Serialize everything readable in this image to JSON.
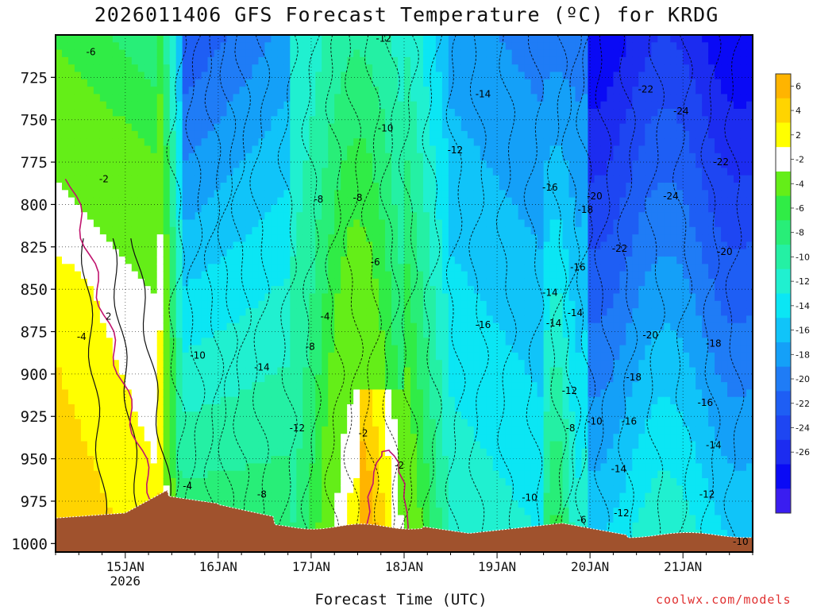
{
  "header": {
    "title": "2026011406 GFS Forecast Temperature (ºC) for KRDG"
  },
  "footer": {
    "xlabel": "Forecast Time (UTC)",
    "credit": "coolwx.com/models"
  },
  "chart_data": {
    "type": "heatmap",
    "title": "2026011406 GFS Forecast Temperature (ºC) for KRDG",
    "xlabel": "Forecast Time (UTC)",
    "ylabel": "",
    "x_ticks": [
      "15JAN",
      "16JAN",
      "17JAN",
      "18JAN",
      "19JAN",
      "20JAN",
      "21JAN"
    ],
    "x_subtick": "2026",
    "y_ticks": [
      725,
      750,
      775,
      800,
      825,
      850,
      875,
      900,
      925,
      950,
      975,
      1000
    ],
    "y_unit": "hPa",
    "xlim_days": [
      14.25,
      21.75
    ],
    "ylim": [
      700,
      1005
    ],
    "grid": true,
    "colorbar": {
      "levels": [
        -28,
        -26,
        -24,
        -22,
        -20,
        -18,
        -16,
        -14,
        -12,
        -10,
        -8,
        -6,
        -4,
        -2,
        2,
        4,
        6,
        8
      ],
      "labels": [
        6,
        4,
        2,
        -2,
        -4,
        -6,
        -8,
        -10,
        -12,
        -14,
        -16,
        -18,
        -20,
        -22,
        -24,
        -26
      ],
      "colors": [
        "#3a1df0",
        "#0a0af5",
        "#1c2cf0",
        "#1e46f2",
        "#1e5ef4",
        "#1f7cf6",
        "#14a0f8",
        "#10c4f9",
        "#0be6f4",
        "#20f0d0",
        "#24f0a4",
        "#28ee78",
        "#30ec46",
        "#64ee18",
        "#ffffff",
        "#ffff00",
        "#ffd400",
        "#ffb400"
      ]
    },
    "contour_labels": [
      {
        "text": "-6",
        "x": 14.63,
        "p": 710
      },
      {
        "text": "-12",
        "x": 17.78,
        "p": 702
      },
      {
        "text": "-14",
        "x": 18.85,
        "p": 735
      },
      {
        "text": "-22",
        "x": 20.6,
        "p": 732
      },
      {
        "text": "-24",
        "x": 20.98,
        "p": 745
      },
      {
        "text": "-10",
        "x": 17.8,
        "p": 755
      },
      {
        "text": "-12",
        "x": 18.55,
        "p": 768
      },
      {
        "text": "-22",
        "x": 21.41,
        "p": 775
      },
      {
        "text": "-2",
        "x": 14.77,
        "p": 785
      },
      {
        "text": "-16",
        "x": 19.57,
        "p": 790
      },
      {
        "text": "-8",
        "x": 17.08,
        "p": 797
      },
      {
        "text": "-8",
        "x": 17.5,
        "p": 796
      },
      {
        "text": "-20",
        "x": 20.05,
        "p": 795
      },
      {
        "text": "-24",
        "x": 20.87,
        "p": 795
      },
      {
        "text": "-18",
        "x": 19.95,
        "p": 803
      },
      {
        "text": "-6",
        "x": 17.69,
        "p": 834
      },
      {
        "text": "-22",
        "x": 20.32,
        "p": 826
      },
      {
        "text": "-20",
        "x": 21.45,
        "p": 828
      },
      {
        "text": "-16",
        "x": 19.87,
        "p": 837
      },
      {
        "text": "-14",
        "x": 19.57,
        "p": 852
      },
      {
        "text": "2",
        "x": 14.82,
        "p": 866
      },
      {
        "text": "-4",
        "x": 17.15,
        "p": 866
      },
      {
        "text": "-14",
        "x": 19.84,
        "p": 864
      },
      {
        "text": "-4",
        "x": 14.53,
        "p": 878
      },
      {
        "text": "-16",
        "x": 18.85,
        "p": 871
      },
      {
        "text": "-14",
        "x": 19.61,
        "p": 870
      },
      {
        "text": "-8",
        "x": 16.99,
        "p": 884
      },
      {
        "text": "-20",
        "x": 20.65,
        "p": 877
      },
      {
        "text": "-10",
        "x": 15.78,
        "p": 889
      },
      {
        "text": "-18",
        "x": 21.33,
        "p": 882
      },
      {
        "text": "-14",
        "x": 16.47,
        "p": 896
      },
      {
        "text": "-18",
        "x": 20.47,
        "p": 902
      },
      {
        "text": "-12",
        "x": 19.78,
        "p": 910
      },
      {
        "text": "-16",
        "x": 21.24,
        "p": 917
      },
      {
        "text": "-10",
        "x": 20.05,
        "p": 928
      },
      {
        "text": "-16",
        "x": 20.42,
        "p": 928
      },
      {
        "text": "-12",
        "x": 16.85,
        "p": 932
      },
      {
        "text": "-2",
        "x": 17.56,
        "p": 935
      },
      {
        "text": "-8",
        "x": 19.79,
        "p": 932
      },
      {
        "text": "-14",
        "x": 21.33,
        "p": 942
      },
      {
        "text": "-2",
        "x": 17.95,
        "p": 954
      },
      {
        "text": "-14",
        "x": 20.31,
        "p": 956
      },
      {
        "text": "-4",
        "x": 15.67,
        "p": 966
      },
      {
        "text": "-8",
        "x": 16.47,
        "p": 971
      },
      {
        "text": "-12",
        "x": 21.26,
        "p": 971
      },
      {
        "text": "-10",
        "x": 19.35,
        "p": 973
      },
      {
        "text": "-12",
        "x": 20.34,
        "p": 982
      },
      {
        "text": "-6",
        "x": 19.91,
        "p": 986
      },
      {
        "text": "-10",
        "x": 21.62,
        "p": 999
      }
    ]
  }
}
